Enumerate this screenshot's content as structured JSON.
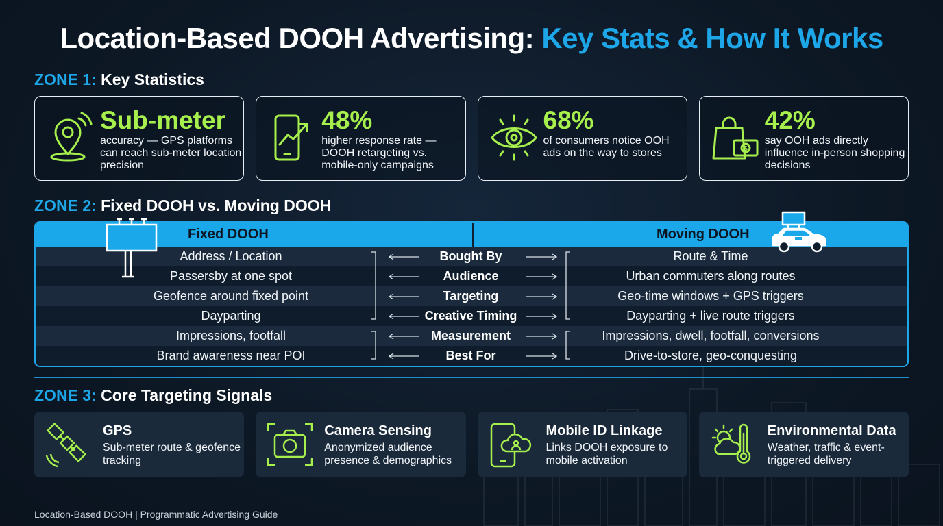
{
  "title": {
    "part1": "Location-Based DOOH Advertising:",
    "part2": "Key Stats & How It Works"
  },
  "zones": {
    "z1": {
      "num": "ZONE 1:",
      "label": "Key Statistics"
    },
    "z2": {
      "num": "ZONE 2:",
      "label": "Fixed DOOH vs. Moving DOOH"
    },
    "z3": {
      "num": "ZONE 3:",
      "label": "Core Targeting Signals"
    }
  },
  "stats": [
    {
      "icon": "location-pin-icon",
      "value": "Sub-meter",
      "desc": "accuracy — GPS platforms can reach sub-meter location precision"
    },
    {
      "icon": "phone-growth-icon",
      "value": "48%",
      "desc": "higher response rate — DOOH retargeting vs. mobile-only campaigns"
    },
    {
      "icon": "eye-icon",
      "value": "68%",
      "desc": "of consumers notice OOH ads on the way to stores"
    },
    {
      "icon": "shopping-bag-icon",
      "value": "42%",
      "desc": "say OOH ads directly influence in-person shopping decisions"
    }
  ],
  "comparison": {
    "left_header": "Fixed DOOH",
    "right_header": "Moving DOOH",
    "rows": [
      {
        "left": "Address / Location",
        "mid": "Bought By",
        "right": "Route & Time"
      },
      {
        "left": "Passersby at one spot",
        "mid": "Audience",
        "right": "Urban commuters along routes"
      },
      {
        "left": "Geofence around fixed point",
        "mid": "Targeting",
        "right": "Geo-time windows + GPS triggers"
      },
      {
        "left": "Dayparting",
        "mid": "Creative Timing",
        "right": "Dayparting + live route triggers"
      },
      {
        "left": "Impressions, footfall",
        "mid": "Measurement",
        "right": "Impressions, dwell, footfall, conversions"
      },
      {
        "left": "Brand awareness near POI",
        "mid": "Best For",
        "right": "Drive-to-store, geo-conquesting"
      }
    ]
  },
  "signals": [
    {
      "icon": "satellite-icon",
      "title": "GPS",
      "desc": "Sub-meter route & geofence tracking"
    },
    {
      "icon": "camera-icon",
      "title": "Camera Sensing",
      "desc": "Anonymized audience presence & demographics"
    },
    {
      "icon": "mobile-cloud-icon",
      "title": "Mobile ID Linkage",
      "desc": "Links DOOH exposure to mobile activation"
    },
    {
      "icon": "weather-icon",
      "title": "Environmental Data",
      "desc": "Weather, traffic & event-triggered delivery"
    }
  ],
  "footer": "Location-Based DOOH | Programmatic Advertising Guide",
  "colors": {
    "accent_blue": "#1ea7e8",
    "accent_green": "#a6ef4c",
    "background": "#0e1a28"
  }
}
